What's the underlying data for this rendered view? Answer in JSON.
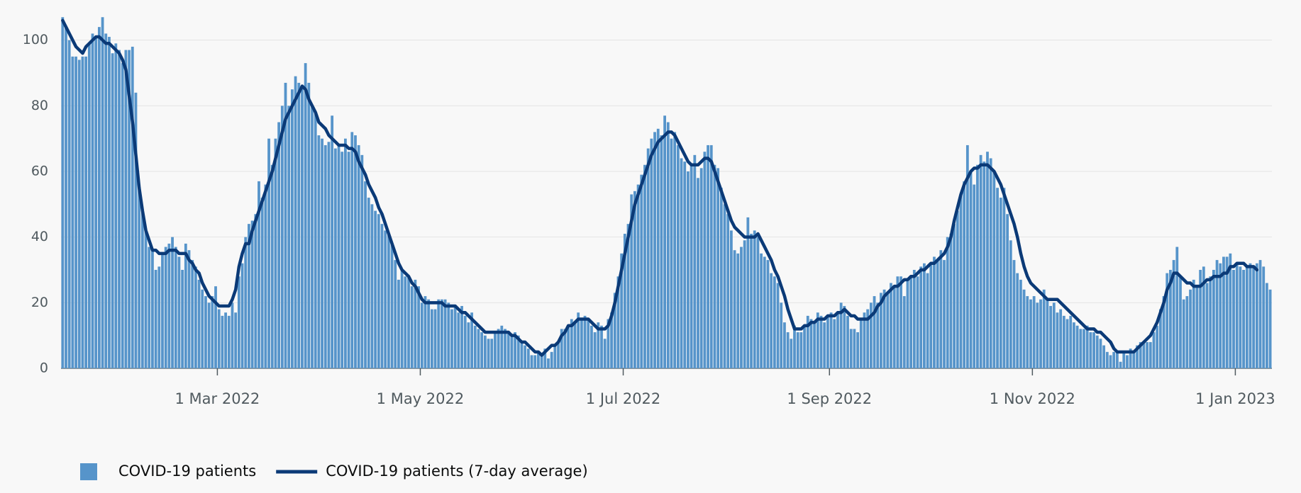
{
  "chart_data": {
    "type": "bar",
    "x": [
      "2022-01-13",
      "2022-01-14",
      "2022-01-15",
      "2022-01-16",
      "2022-01-17",
      "2022-01-18",
      "2022-01-19",
      "2022-01-20",
      "2022-01-21",
      "2022-01-22",
      "2022-01-23",
      "2022-01-24",
      "2022-01-25",
      "2022-01-26",
      "2022-01-27",
      "2022-01-28",
      "2022-01-29",
      "2022-01-30",
      "2022-01-31",
      "2022-02-01",
      "2022-02-02",
      "2022-02-03",
      "2022-02-04",
      "2022-02-05",
      "2022-02-06",
      "2022-02-07",
      "2022-02-08",
      "2022-02-09",
      "2022-02-10",
      "2022-02-11",
      "2022-02-12",
      "2022-02-13",
      "2022-02-14",
      "2022-02-15",
      "2022-02-16",
      "2022-02-17",
      "2022-02-18",
      "2022-02-19",
      "2022-02-20",
      "2022-02-21",
      "2022-02-22",
      "2022-02-23",
      "2022-02-24",
      "2022-02-25",
      "2022-02-26",
      "2022-02-27",
      "2022-02-28",
      "2022-03-01",
      "2022-03-02",
      "2022-03-03",
      "2022-03-04",
      "2022-03-05",
      "2022-03-06",
      "2022-03-07",
      "2022-03-08",
      "2022-03-09",
      "2022-03-10",
      "2022-03-11",
      "2022-03-12",
      "2022-03-13",
      "2022-03-14",
      "2022-03-15",
      "2022-03-16",
      "2022-03-17",
      "2022-03-18",
      "2022-03-19",
      "2022-03-20",
      "2022-03-21",
      "2022-03-22",
      "2022-03-23",
      "2022-03-24",
      "2022-03-25",
      "2022-03-26",
      "2022-03-27",
      "2022-03-28",
      "2022-03-29",
      "2022-03-30",
      "2022-03-31",
      "2022-04-01",
      "2022-04-02",
      "2022-04-03",
      "2022-04-04",
      "2022-04-05",
      "2022-04-06",
      "2022-04-07",
      "2022-04-08",
      "2022-04-09",
      "2022-04-10",
      "2022-04-11",
      "2022-04-12",
      "2022-04-13",
      "2022-04-14",
      "2022-04-15",
      "2022-04-16",
      "2022-04-17",
      "2022-04-18",
      "2022-04-19",
      "2022-04-20",
      "2022-04-21",
      "2022-04-22",
      "2022-04-23",
      "2022-04-24",
      "2022-04-25",
      "2022-04-26",
      "2022-04-27",
      "2022-04-28",
      "2022-04-29",
      "2022-04-30",
      "2022-05-01",
      "2022-05-02",
      "2022-05-03",
      "2022-05-04",
      "2022-05-05",
      "2022-05-06",
      "2022-05-07",
      "2022-05-08",
      "2022-05-09",
      "2022-05-10",
      "2022-05-11",
      "2022-05-12",
      "2022-05-13",
      "2022-05-14",
      "2022-05-15",
      "2022-05-16",
      "2022-05-17",
      "2022-05-18",
      "2022-05-19",
      "2022-05-20",
      "2022-05-21",
      "2022-05-22",
      "2022-05-23",
      "2022-05-24",
      "2022-05-25",
      "2022-05-26",
      "2022-05-27",
      "2022-05-28",
      "2022-05-29",
      "2022-05-30",
      "2022-05-31",
      "2022-06-01",
      "2022-06-02",
      "2022-06-03",
      "2022-06-04",
      "2022-06-05",
      "2022-06-06",
      "2022-06-07",
      "2022-06-08",
      "2022-06-09",
      "2022-06-10",
      "2022-06-11",
      "2022-06-12",
      "2022-06-13",
      "2022-06-14",
      "2022-06-15",
      "2022-06-16",
      "2022-06-17",
      "2022-06-18",
      "2022-06-19",
      "2022-06-20",
      "2022-06-21",
      "2022-06-22",
      "2022-06-23",
      "2022-06-24",
      "2022-06-25",
      "2022-06-26",
      "2022-06-27",
      "2022-06-28",
      "2022-06-29",
      "2022-06-30",
      "2022-07-01",
      "2022-07-02",
      "2022-07-03",
      "2022-07-04",
      "2022-07-05",
      "2022-07-06",
      "2022-07-07",
      "2022-07-08",
      "2022-07-09",
      "2022-07-10",
      "2022-07-11",
      "2022-07-12",
      "2022-07-13",
      "2022-07-14",
      "2022-07-15",
      "2022-07-16",
      "2022-07-17",
      "2022-07-18",
      "2022-07-19",
      "2022-07-20",
      "2022-07-21",
      "2022-07-22",
      "2022-07-23",
      "2022-07-24",
      "2022-07-25",
      "2022-07-26",
      "2022-07-27",
      "2022-07-28",
      "2022-07-29",
      "2022-07-30",
      "2022-07-31",
      "2022-08-01",
      "2022-08-02",
      "2022-08-03",
      "2022-08-04",
      "2022-08-05",
      "2022-08-06",
      "2022-08-07",
      "2022-08-08",
      "2022-08-09",
      "2022-08-10",
      "2022-08-11",
      "2022-08-12",
      "2022-08-13",
      "2022-08-14",
      "2022-08-15",
      "2022-08-16",
      "2022-08-17",
      "2022-08-18",
      "2022-08-19",
      "2022-08-20",
      "2022-08-21",
      "2022-08-22",
      "2022-08-23",
      "2022-08-24",
      "2022-08-25",
      "2022-08-26",
      "2022-08-27",
      "2022-08-28",
      "2022-08-29",
      "2022-08-30",
      "2022-08-31",
      "2022-09-01",
      "2022-09-02",
      "2022-09-03",
      "2022-09-04",
      "2022-09-05",
      "2022-09-06",
      "2022-09-07",
      "2022-09-08",
      "2022-09-09",
      "2022-09-10",
      "2022-09-11",
      "2022-09-12",
      "2022-09-13",
      "2022-09-14",
      "2022-09-15",
      "2022-09-16",
      "2022-09-17",
      "2022-09-18",
      "2022-09-19",
      "2022-09-20",
      "2022-09-21",
      "2022-09-22",
      "2022-09-23",
      "2022-09-24",
      "2022-09-25",
      "2022-09-26",
      "2022-09-27",
      "2022-09-28",
      "2022-09-29",
      "2022-09-30",
      "2022-10-01",
      "2022-10-02",
      "2022-10-03",
      "2022-10-04",
      "2022-10-05",
      "2022-10-06",
      "2022-10-07",
      "2022-10-08",
      "2022-10-09",
      "2022-10-10",
      "2022-10-11",
      "2022-10-12",
      "2022-10-13",
      "2022-10-14",
      "2022-10-15",
      "2022-10-16",
      "2022-10-17",
      "2022-10-18",
      "2022-10-19",
      "2022-10-20",
      "2022-10-21",
      "2022-10-22",
      "2022-10-23",
      "2022-10-24",
      "2022-10-25",
      "2022-10-26",
      "2022-10-27",
      "2022-10-28",
      "2022-10-29",
      "2022-10-30",
      "2022-10-31",
      "2022-11-01",
      "2022-11-02",
      "2022-11-03",
      "2022-11-04",
      "2022-11-05",
      "2022-11-06",
      "2022-11-07",
      "2022-11-08",
      "2022-11-09",
      "2022-11-10",
      "2022-11-11",
      "2022-11-12",
      "2022-11-13",
      "2022-11-14",
      "2022-11-15",
      "2022-11-16",
      "2022-11-17",
      "2022-11-18",
      "2022-11-19",
      "2022-11-20",
      "2022-11-21",
      "2022-11-22",
      "2022-11-23",
      "2022-11-24",
      "2022-11-25",
      "2022-11-26",
      "2022-11-27",
      "2022-11-28",
      "2022-11-29",
      "2022-11-30",
      "2022-12-01",
      "2022-12-02",
      "2022-12-03",
      "2022-12-04",
      "2022-12-05",
      "2022-12-06",
      "2022-12-07",
      "2022-12-08",
      "2022-12-09",
      "2022-12-10",
      "2022-12-11",
      "2022-12-12",
      "2022-12-13",
      "2022-12-14",
      "2022-12-15",
      "2022-12-16",
      "2022-12-17",
      "2022-12-18",
      "2022-12-19",
      "2022-12-20",
      "2022-12-21",
      "2022-12-22",
      "2022-12-23",
      "2022-12-24",
      "2022-12-25",
      "2022-12-26",
      "2022-12-27",
      "2022-12-28",
      "2022-12-29",
      "2022-12-30",
      "2022-12-31",
      "2023-01-01",
      "2023-01-02",
      "2023-01-03",
      "2023-01-04",
      "2023-01-05",
      "2023-01-06",
      "2023-01-07",
      "2023-01-08",
      "2023-01-09",
      "2023-01-10",
      "2023-01-11"
    ],
    "series": [
      {
        "name": "COVID-19 patients",
        "type": "bar",
        "color": "#5694ca",
        "values": [
          107,
          104,
          100,
          95,
          95,
          94,
          95,
          95,
          99,
          102,
          101,
          104,
          107,
          102,
          101,
          96,
          99,
          97,
          93,
          97,
          97,
          98,
          84,
          56,
          48,
          42,
          37,
          36,
          30,
          31,
          35,
          37,
          38,
          40,
          37,
          34,
          30,
          38,
          36,
          33,
          31,
          27,
          24,
          22,
          20,
          22,
          25,
          18,
          16,
          17,
          16,
          20,
          17,
          28,
          32,
          40,
          44,
          45,
          47,
          57,
          52,
          56,
          70,
          62,
          70,
          75,
          80,
          87,
          80,
          85,
          89,
          87,
          86,
          93,
          87,
          80,
          78,
          71,
          70,
          68,
          69,
          77,
          67,
          68,
          66,
          70,
          66,
          72,
          71,
          68,
          65,
          57,
          52,
          50,
          48,
          47,
          44,
          42,
          41,
          38,
          33,
          27,
          30,
          28,
          28,
          25,
          27,
          25,
          20,
          22,
          21,
          18,
          18,
          21,
          21,
          21,
          20,
          18,
          19,
          17,
          19,
          16,
          14,
          17,
          13,
          12,
          11,
          10,
          9,
          9,
          11,
          12,
          13,
          12,
          11,
          10,
          11,
          10,
          8,
          7,
          6,
          4,
          4,
          5,
          4,
          6,
          3,
          5,
          7,
          8,
          12,
          12,
          13,
          15,
          14,
          17,
          15,
          16,
          15,
          13,
          11,
          14,
          13,
          9,
          15,
          17,
          23,
          28,
          35,
          41,
          44,
          53,
          54,
          56,
          59,
          62,
          67,
          70,
          72,
          73,
          71,
          77,
          75,
          70,
          72,
          68,
          64,
          63,
          60,
          62,
          65,
          58,
          61,
          66,
          68,
          68,
          62,
          61,
          55,
          50,
          47,
          42,
          36,
          35,
          37,
          39,
          46,
          41,
          42,
          40,
          35,
          34,
          33,
          29,
          28,
          26,
          20,
          14,
          11,
          9,
          13,
          11,
          11,
          13,
          16,
          15,
          14,
          17,
          16,
          14,
          16,
          17,
          15,
          17,
          20,
          19,
          16,
          12,
          12,
          11,
          15,
          17,
          18,
          20,
          22,
          20,
          23,
          24,
          23,
          26,
          25,
          28,
          28,
          22,
          27,
          28,
          30,
          28,
          31,
          32,
          29,
          32,
          34,
          33,
          36,
          33,
          40,
          41,
          44,
          48,
          53,
          57,
          68,
          60,
          56,
          62,
          65,
          63,
          66,
          64,
          60,
          55,
          52,
          55,
          47,
          39,
          33,
          29,
          27,
          24,
          22,
          21,
          22,
          20,
          21,
          24,
          21,
          19,
          20,
          17,
          18,
          16,
          15,
          16,
          14,
          13,
          12,
          12,
          13,
          11,
          11,
          10,
          9,
          7,
          5,
          4,
          5,
          5,
          2,
          5,
          4,
          6,
          5,
          7,
          8,
          8,
          8,
          8,
          11,
          13,
          18,
          22,
          29,
          30,
          33,
          37,
          28,
          21,
          22,
          24,
          27,
          25,
          30,
          31,
          26,
          28,
          30,
          33,
          32,
          34,
          34,
          35,
          30,
          32,
          31,
          30,
          31,
          32,
          31,
          32,
          33,
          31,
          26,
          24
        ]
      },
      {
        "name": "COVID-19 patients (7-day average)",
        "type": "line",
        "color": "#0b3a77",
        "values": [
          106,
          104,
          102,
          100,
          98,
          97,
          96,
          98,
          99,
          100,
          101,
          101,
          100,
          99,
          99,
          98,
          97,
          96,
          94,
          91,
          83,
          75,
          65,
          55,
          48,
          42,
          39,
          36,
          36,
          35,
          35,
          35,
          36,
          36,
          36,
          35,
          35,
          35,
          33,
          32,
          30,
          29,
          26,
          24,
          22,
          21,
          20,
          19,
          19,
          19,
          19,
          21,
          24,
          31,
          35,
          38,
          38,
          42,
          45,
          48,
          51,
          54,
          57,
          60,
          64,
          68,
          72,
          76,
          78,
          80,
          82,
          84,
          86,
          85,
          82,
          80,
          78,
          75,
          74,
          73,
          71,
          70,
          69,
          68,
          68,
          68,
          67,
          67,
          66,
          63,
          61,
          59,
          56,
          54,
          52,
          49,
          47,
          44,
          41,
          38,
          35,
          32,
          30,
          29,
          28,
          26,
          25,
          23,
          21,
          20,
          20,
          20,
          20,
          20,
          20,
          19,
          19,
          19,
          19,
          18,
          17,
          17,
          16,
          15,
          14,
          13,
          12,
          11,
          11,
          11,
          11,
          11,
          11,
          11,
          11,
          10,
          10,
          9,
          8,
          8,
          7,
          6,
          5,
          5,
          4,
          5,
          6,
          7,
          7,
          8,
          10,
          11,
          13,
          13,
          14,
          15,
          15,
          15,
          15,
          14,
          13,
          12,
          12,
          12,
          13,
          16,
          20,
          25,
          30,
          35,
          40,
          45,
          50,
          53,
          56,
          59,
          62,
          65,
          67,
          69,
          70,
          71,
          72,
          72,
          71,
          69,
          67,
          65,
          63,
          62,
          62,
          62,
          63,
          64,
          64,
          63,
          60,
          57,
          54,
          51,
          48,
          45,
          43,
          42,
          41,
          40,
          40,
          40,
          40,
          41,
          39,
          37,
          35,
          33,
          30,
          28,
          25,
          22,
          18,
          15,
          12,
          12,
          12,
          13,
          13,
          14,
          14,
          15,
          15,
          15,
          16,
          16,
          16,
          17,
          17,
          18,
          17,
          16,
          16,
          15,
          15,
          15,
          15,
          16,
          17,
          19,
          20,
          22,
          23,
          24,
          25,
          25,
          26,
          27,
          27,
          28,
          28,
          29,
          30,
          30,
          31,
          32,
          32,
          33,
          34,
          35,
          37,
          40,
          45,
          49,
          53,
          56,
          58,
          60,
          61,
          61,
          62,
          62,
          62,
          61,
          60,
          58,
          56,
          53,
          50,
          47,
          44,
          40,
          35,
          31,
          28,
          26,
          25,
          24,
          23,
          22,
          21,
          21,
          21,
          21,
          20,
          19,
          18,
          17,
          16,
          15,
          14,
          13,
          12,
          12,
          12,
          11,
          11,
          10,
          9,
          8,
          6,
          5,
          5,
          5,
          5,
          5,
          5,
          6,
          7,
          8,
          9,
          10,
          12,
          14,
          17,
          20,
          24,
          26,
          29,
          29,
          28,
          27,
          26,
          26,
          25,
          25,
          25,
          26,
          27,
          27,
          28,
          28,
          28,
          29,
          29,
          31,
          31,
          32,
          32,
          32,
          31,
          31,
          31,
          30,
          null,
          null,
          null,
          null
        ]
      }
    ],
    "xlim": [
      "2022-01-13",
      "2023-01-11"
    ],
    "xticks": [
      {
        "value": "2022-03-01",
        "label": "1 Mar 2022"
      },
      {
        "value": "2022-05-01",
        "label": "1 May 2022"
      },
      {
        "value": "2022-07-01",
        "label": "1 Jul 2022"
      },
      {
        "value": "2022-09-01",
        "label": "1 Sep 2022"
      },
      {
        "value": "2022-11-01",
        "label": "1 Nov 2022"
      },
      {
        "value": "2023-01-01",
        "label": "1 Jan 2023"
      }
    ],
    "ylim": [
      0,
      107
    ],
    "yticks": [
      0,
      20,
      40,
      60,
      80,
      100
    ],
    "grid": true,
    "legend": "bottom-left"
  }
}
